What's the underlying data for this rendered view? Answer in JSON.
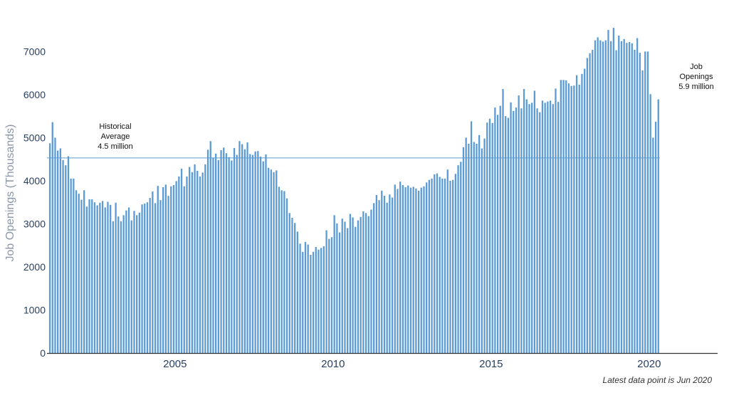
{
  "chart_data": {
    "type": "bar",
    "ylabel": "Job Openings (Thousands)",
    "xlabel": "",
    "ylim": [
      0,
      7700
    ],
    "xlim": [
      2000.95,
      2020.55
    ],
    "yticks": [
      0,
      1000,
      2000,
      3000,
      4000,
      5000,
      6000,
      7000
    ],
    "xticks": [
      2005,
      2010,
      2015,
      2020
    ],
    "grid": false,
    "bar_color": "#5b9bd5",
    "reference_line": {
      "value": 4530,
      "color": "#5b9bd5"
    },
    "annotations": [
      {
        "lines": [
          "Historical",
          "Average",
          "4.5 million"
        ]
      },
      {
        "lines": [
          "Job",
          "Openings",
          "5.9 million"
        ]
      }
    ],
    "note": "Latest data point is Jun 2020",
    "series": [
      {
        "start": "2001-01",
        "frequency": "monthly",
        "values": [
          4870,
          5360,
          5000,
          4700,
          4750,
          4480,
          4360,
          4570,
          4050,
          4050,
          3780,
          3700,
          3560,
          3780,
          3400,
          3570,
          3570,
          3500,
          3430,
          3490,
          3530,
          3380,
          3510,
          3440,
          3060,
          3490,
          3170,
          3060,
          3200,
          3310,
          3380,
          3080,
          3300,
          3200,
          3260,
          3450,
          3470,
          3500,
          3600,
          3750,
          3480,
          3880,
          3550,
          3850,
          3910,
          3650,
          3870,
          3900,
          3990,
          4100,
          4280,
          3870,
          4100,
          4320,
          4200,
          4380,
          4230,
          4100,
          4190,
          4380,
          4720,
          4920,
          4530,
          4630,
          4480,
          4710,
          4770,
          4640,
          4550,
          4470,
          4760,
          4600,
          4920,
          4850,
          4730,
          4890,
          4620,
          4600,
          4680,
          4690,
          4560,
          4450,
          4610,
          4300,
          4260,
          4200,
          4240,
          3860,
          3780,
          3760,
          3590,
          3250,
          3140,
          3020,
          2820,
          2540,
          2350,
          2580,
          2520,
          2280,
          2350,
          2460,
          2400,
          2440,
          2480,
          2850,
          2650,
          2690,
          3200,
          3010,
          2800,
          3120,
          3050,
          2900,
          3230,
          3150,
          2930,
          3080,
          3160,
          3290,
          3250,
          3180,
          3330,
          3480,
          3670,
          3550,
          3770,
          3650,
          3490,
          3680,
          3610,
          3910,
          3810,
          3980,
          3900,
          3850,
          3890,
          3840,
          3860,
          3820,
          3770,
          3840,
          3870,
          3960,
          4020,
          4050,
          4150,
          4170,
          4090,
          4050,
          4050,
          4260,
          4000,
          4020,
          4160,
          4360,
          4440,
          4780,
          5000,
          4860,
          5380,
          4900,
          4860,
          5060,
          4750,
          4980,
          5350,
          5440,
          5340,
          5700,
          5530,
          5740,
          6130,
          5500,
          5460,
          5820,
          5620,
          5700,
          5980,
          5680,
          6130,
          5890,
          5780,
          5810,
          6090,
          5680,
          5590,
          5860,
          5810,
          5840,
          5860,
          5780,
          6140,
          5830,
          6340,
          6340,
          6330,
          6260,
          6200,
          6210,
          6450,
          6230,
          6480,
          6600,
          6850,
          6960,
          7040,
          7260,
          7330,
          7260,
          7230,
          7260,
          7500,
          7240,
          7550,
          7030,
          7370,
          7240,
          7290,
          7200,
          7220,
          7190,
          7040,
          7310,
          6970,
          6560,
          7000,
          7000,
          6010,
          5000,
          5370,
          5890
        ]
      }
    ]
  }
}
